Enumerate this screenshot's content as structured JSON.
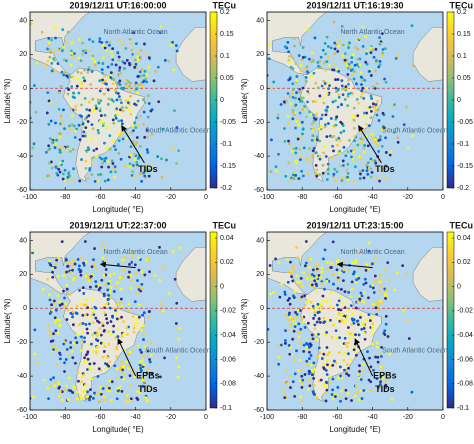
{
  "chart_data": [
    {
      "type": "map",
      "title": "2019/12/11 UT:16:00:00",
      "colorbar_label": "TECu",
      "xlabel": "Longitude( °E)",
      "ylabel": "Latitude( °N)",
      "xlim": [
        -100,
        0
      ],
      "ylim": [
        -60,
        45
      ],
      "xticks": [
        -100,
        -80,
        -60,
        -40,
        -20,
        0
      ],
      "yticks": [
        40,
        20,
        0,
        -20,
        -40,
        -60
      ],
      "clim": [
        -0.2,
        0.2
      ],
      "cticks": [
        0.2,
        0.15,
        0.1,
        0.05,
        0,
        -0.05,
        -0.1,
        -0.15,
        -0.2
      ],
      "hline": 0,
      "colormap": [
        "#352a87",
        "#0363e1",
        "#1485d4",
        "#06a7c6",
        "#38b99e",
        "#92bf73",
        "#d9ba56",
        "#fcce2e",
        "#f9fb0e"
      ],
      "annotations": [
        "North Atlantic Ocean",
        "South Atlantic Ocean",
        "TIDs"
      ]
    },
    {
      "type": "map",
      "title": "2019/12/11 UT:16:19:30",
      "colorbar_label": "TECu",
      "xlabel": "Longitude( °E)",
      "ylabel": "Latitude( °N)",
      "xlim": [
        -100,
        0
      ],
      "ylim": [
        -60,
        45
      ],
      "xticks": [
        -100,
        -80,
        -60,
        -40,
        -20,
        0
      ],
      "yticks": [
        40,
        20,
        0,
        -20,
        -40,
        -60
      ],
      "clim": [
        -0.2,
        0.2
      ],
      "cticks": [
        0.2,
        0.15,
        0.1,
        0.05,
        0,
        -0.05,
        -0.1,
        -0.15,
        -0.2
      ],
      "hline": 0,
      "colormap": [
        "#352a87",
        "#0363e1",
        "#1485d4",
        "#06a7c6",
        "#38b99e",
        "#92bf73",
        "#d9ba56",
        "#fcce2e",
        "#f9fb0e"
      ],
      "annotations": [
        "North Atlantic Ocean",
        "South Atlantic Ocean",
        "TIDs"
      ]
    },
    {
      "type": "map",
      "title": "2019/12/11 UT:22:37:00",
      "colorbar_label": "TECu",
      "xlabel": "Longitude( °E)",
      "ylabel": "Latitude( °N)",
      "xlim": [
        -100,
        0
      ],
      "ylim": [
        -60,
        45
      ],
      "xticks": [
        -100,
        -80,
        -60,
        -40,
        -20,
        0
      ],
      "yticks": [
        40,
        20,
        0,
        -20,
        -40,
        -60
      ],
      "clim": [
        -0.1,
        0.045
      ],
      "cticks": [
        0.04,
        0.02,
        0,
        -0.02,
        -0.04,
        -0.06,
        -0.08,
        -0.1
      ],
      "hline": 0,
      "colormap": [
        "#352a87",
        "#0363e1",
        "#1485d4",
        "#06a7c6",
        "#38b99e",
        "#92bf73",
        "#d9ba56",
        "#fcce2e",
        "#f9fb0e"
      ],
      "annotations": [
        "North Atlantic Ocean",
        "South Atlantic Ocean",
        "TIDs",
        "EPBs"
      ]
    },
    {
      "type": "map",
      "title": "2019/12/11 UT:23:15:00",
      "colorbar_label": "TECu",
      "xlabel": "Longitude( °E)",
      "ylabel": "Latitude( °N)",
      "xlim": [
        -100,
        0
      ],
      "ylim": [
        -60,
        45
      ],
      "xticks": [
        -100,
        -80,
        -60,
        -40,
        -20,
        0
      ],
      "yticks": [
        40,
        20,
        0,
        -20,
        -40,
        -60
      ],
      "clim": [
        -0.1,
        0.045
      ],
      "cticks": [
        0.04,
        0.02,
        0,
        -0.02,
        -0.04,
        -0.06,
        -0.08,
        -0.1
      ],
      "hline": 0,
      "colormap": [
        "#352a87",
        "#0363e1",
        "#1485d4",
        "#06a7c6",
        "#38b99e",
        "#92bf73",
        "#d9ba56",
        "#fcce2e",
        "#f9fb0e"
      ],
      "annotations": [
        "North Atlantic Ocean",
        "South Atlantic Ocean",
        "TIDs",
        "EPBs"
      ]
    }
  ]
}
